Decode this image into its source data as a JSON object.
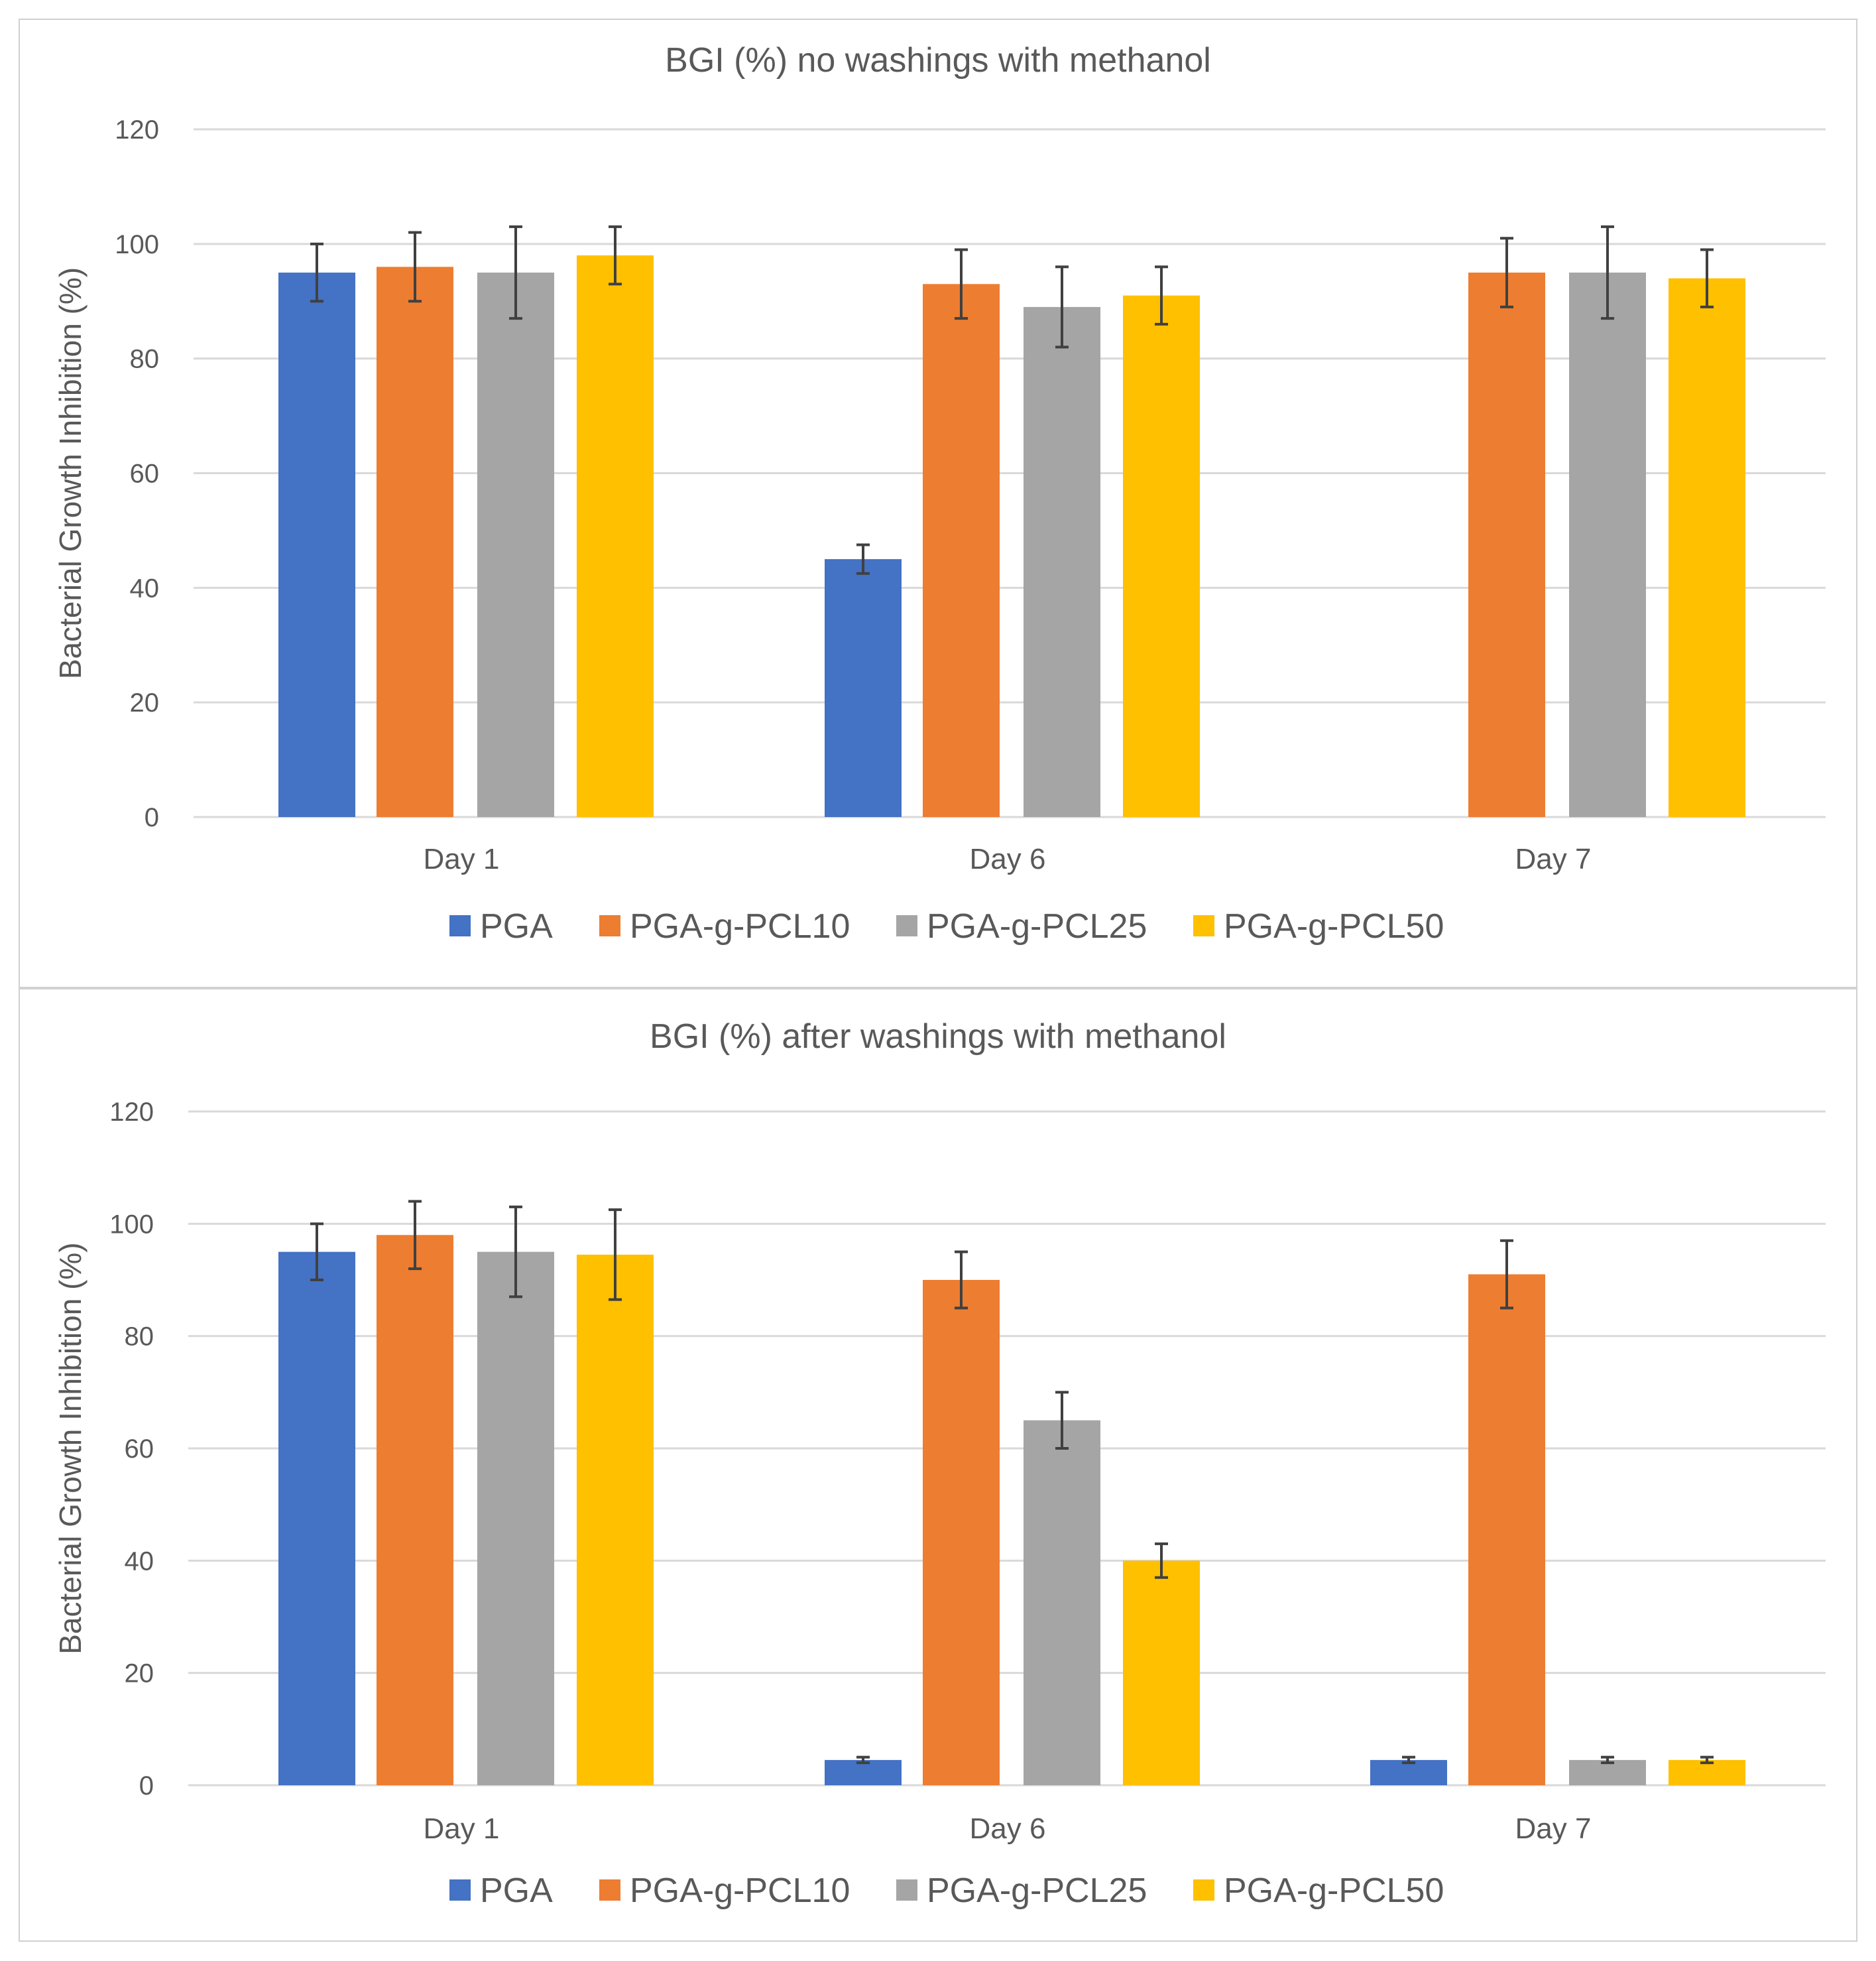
{
  "colors": {
    "PGA": "#4472C4",
    "PGA-g-PCL10": "#ED7D31",
    "PGA-g-PCL25": "#A5A5A5",
    "PGA-g-PCL50": "#FFC000",
    "grid": "#d9d9d9",
    "error": "#404040"
  },
  "chart_data": [
    {
      "type": "bar",
      "title": "BGI (%) no washings with methanol",
      "xlabel": "",
      "ylabel": "Bacterial Growth Inhibition (%)",
      "ylim": [
        0,
        120
      ],
      "yticks": [
        "0",
        "20",
        "40",
        "60",
        "80",
        "100",
        "120"
      ],
      "categories": [
        "Day 1",
        "Day 6",
        "Day 7"
      ],
      "series": [
        {
          "name": "PGA",
          "values": [
            95,
            45,
            0
          ],
          "errors": [
            5,
            2.5,
            0
          ]
        },
        {
          "name": "PGA-g-PCL10",
          "values": [
            96,
            93,
            95
          ],
          "errors": [
            6,
            6,
            6
          ]
        },
        {
          "name": "PGA-g-PCL25",
          "values": [
            95,
            89,
            95
          ],
          "errors": [
            8,
            7,
            8
          ]
        },
        {
          "name": "PGA-g-PCL50",
          "values": [
            98,
            91,
            94
          ],
          "errors": [
            5,
            5,
            5
          ]
        }
      ],
      "legend": "bottom"
    },
    {
      "type": "bar",
      "title": "BGI (%) after washings with methanol",
      "xlabel": "",
      "ylabel": "Bacterial Growth Inhibition (%)",
      "ylim": [
        0,
        120
      ],
      "yticks": [
        "0",
        "20",
        "40",
        "60",
        "80",
        "100",
        "120"
      ],
      "categories": [
        "Day 1",
        "Day 6",
        "Day 7"
      ],
      "series": [
        {
          "name": "PGA",
          "values": [
            95,
            4.5,
            4.5
          ],
          "errors": [
            5,
            0.5,
            0.5
          ]
        },
        {
          "name": "PGA-g-PCL10",
          "values": [
            98,
            90,
            91
          ],
          "errors": [
            6,
            5,
            6
          ]
        },
        {
          "name": "PGA-g-PCL25",
          "values": [
            95,
            65,
            4.5
          ],
          "errors": [
            8,
            5,
            0.5
          ]
        },
        {
          "name": "PGA-g-PCL50",
          "values": [
            94.5,
            40,
            4.5
          ],
          "errors": [
            8,
            3,
            0.5
          ]
        }
      ],
      "legend": "bottom"
    }
  ]
}
